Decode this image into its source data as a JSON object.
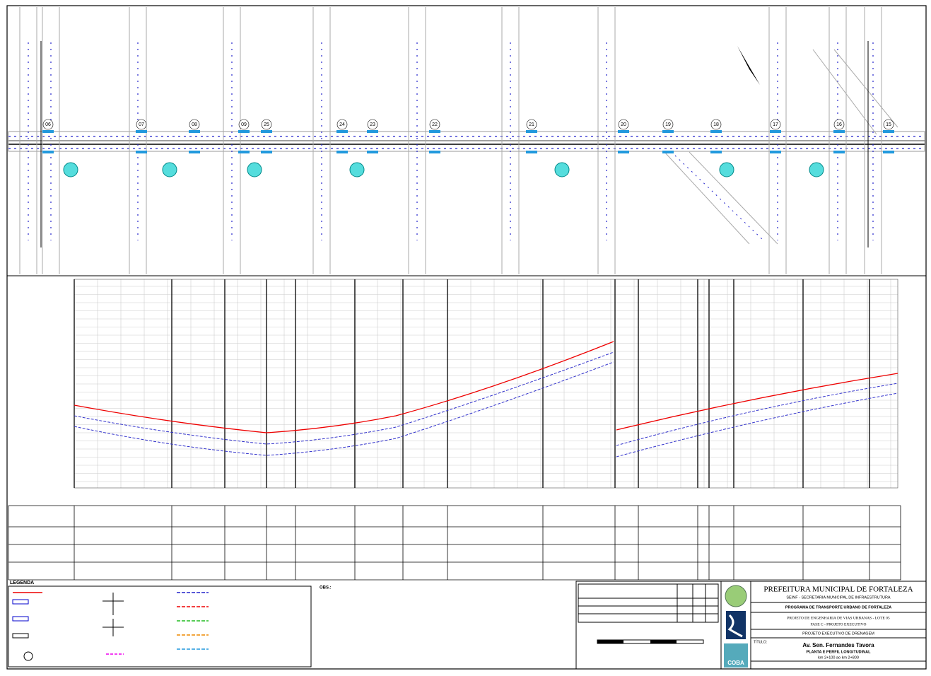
{
  "plan": {
    "nodes": [
      {
        "label": "06"
      },
      {
        "label": "07"
      },
      {
        "label": "08"
      },
      {
        "label": "09"
      },
      {
        "label": "25"
      },
      {
        "label": "24"
      },
      {
        "label": "23"
      },
      {
        "label": "22"
      },
      {
        "label": "21"
      },
      {
        "label": "20"
      },
      {
        "label": "19"
      },
      {
        "label": "18"
      },
      {
        "label": "17"
      },
      {
        "label": "16"
      },
      {
        "label": "15"
      }
    ]
  },
  "legend": {
    "title": "LEGENDA"
  },
  "notes": {
    "title": "OBS.:"
  },
  "title_block": {
    "org": "PREFEITURA MUNICIPAL DE FORTALEZA",
    "dept": "SEINF - SECRETARIA MUNICIPAL DE INFRAESTRUTURA",
    "program": "PROGRAMA DE TRANSPORTE URBANO DE FORTALEZA",
    "project": "PROJETO DE ENGENHARIA DE VIAS URBANAS - LOTE 05",
    "phase": "FASE C - PROJETO EXECUTIVO",
    "discipline": "PROJETO EXECUTIVO DE DRENAGEM",
    "title_label": "TÍTULO:",
    "street": "Av. Sen. Fernandes Tavora",
    "sheet": "PLANTA E PERFIL LONGITUDINAL",
    "range": "km 2+100 ao km 2+800",
    "logo": "COBA"
  }
}
